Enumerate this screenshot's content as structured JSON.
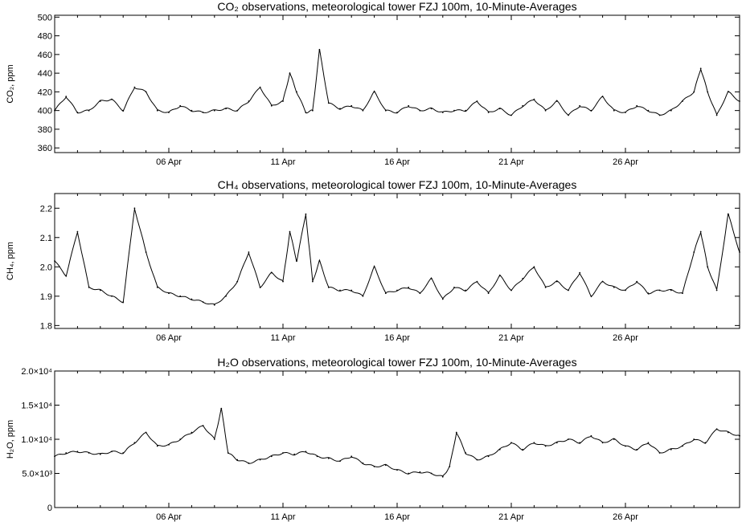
{
  "chart_data": [
    {
      "type": "line",
      "title": "CO₂ observations, meteorological tower FZJ 100m, 10-Minute-Averages",
      "ylabel": "CO₂, ppm",
      "xlabel": "",
      "x_ticks": [
        "06 Apr",
        "11 Apr",
        "16 Apr",
        "21 Apr",
        "26 Apr"
      ],
      "y_ticks": [
        "360",
        "380",
        "400",
        "420",
        "440",
        "460",
        "480",
        "500"
      ],
      "xlim": [
        1,
        31
      ],
      "ylim": [
        355,
        502
      ],
      "series": [
        {
          "color": "#000000",
          "x": [
            1.0,
            1.5,
            2.0,
            2.5,
            3.0,
            3.5,
            4.0,
            4.5,
            5.0,
            5.5,
            6.0,
            6.5,
            7.0,
            7.5,
            8.0,
            8.5,
            9.0,
            9.5,
            10.0,
            10.5,
            11.0,
            11.3,
            11.6,
            12.0,
            12.3,
            12.6,
            13.0,
            13.5,
            14.0,
            14.5,
            15.0,
            15.5,
            16.0,
            16.5,
            17.0,
            17.5,
            18.0,
            18.5,
            19.0,
            19.5,
            20.0,
            20.5,
            21.0,
            21.5,
            22.0,
            22.5,
            23.0,
            23.5,
            24.0,
            24.5,
            25.0,
            25.5,
            26.0,
            26.5,
            27.0,
            27.5,
            28.0,
            28.5,
            29.0,
            29.3,
            29.6,
            30.0,
            30.5,
            31.0
          ],
          "y": [
            400,
            415,
            398,
            400,
            410,
            412,
            400,
            425,
            420,
            400,
            398,
            405,
            400,
            398,
            400,
            402,
            400,
            410,
            425,
            405,
            410,
            440,
            420,
            398,
            400,
            465,
            408,
            402,
            405,
            400,
            420,
            400,
            398,
            405,
            400,
            402,
            398,
            400,
            400,
            410,
            398,
            402,
            395,
            405,
            412,
            400,
            410,
            395,
            405,
            400,
            415,
            400,
            398,
            405,
            400,
            395,
            400,
            410,
            420,
            445,
            420,
            395,
            420,
            410
          ]
        }
      ]
    },
    {
      "type": "line",
      "title": "CH₄ observations, meteorological tower FZJ 100m, 10-Minute-Averages",
      "ylabel": "CH₄, ppm",
      "xlabel": "",
      "x_ticks": [
        "06 Apr",
        "11 Apr",
        "16 Apr",
        "21 Apr",
        "26 Apr"
      ],
      "y_ticks": [
        "1.8",
        "1.9",
        "2.0",
        "2.1",
        "2.2"
      ],
      "xlim": [
        1,
        31
      ],
      "ylim": [
        1.79,
        2.25
      ],
      "series": [
        {
          "color": "#000000",
          "x": [
            1.0,
            1.5,
            2.0,
            2.5,
            3.0,
            3.5,
            4.0,
            4.5,
            5.0,
            5.5,
            6.0,
            6.5,
            7.0,
            7.5,
            8.0,
            8.5,
            9.0,
            9.5,
            10.0,
            10.5,
            11.0,
            11.3,
            11.6,
            12.0,
            12.3,
            12.6,
            13.0,
            13.5,
            14.0,
            14.5,
            15.0,
            15.5,
            16.0,
            16.5,
            17.0,
            17.5,
            18.0,
            18.5,
            19.0,
            19.5,
            20.0,
            20.5,
            21.0,
            21.5,
            22.0,
            22.5,
            23.0,
            23.5,
            24.0,
            24.5,
            25.0,
            25.5,
            26.0,
            26.5,
            27.0,
            27.5,
            28.0,
            28.5,
            29.0,
            29.3,
            29.6,
            30.0,
            30.5,
            31.0
          ],
          "y": [
            2.02,
            1.97,
            2.12,
            1.93,
            1.92,
            1.9,
            1.88,
            2.2,
            2.05,
            1.93,
            1.91,
            1.9,
            1.89,
            1.88,
            1.87,
            1.9,
            1.95,
            2.05,
            1.93,
            1.98,
            1.95,
            2.12,
            2.02,
            2.18,
            1.95,
            2.02,
            1.93,
            1.92,
            1.92,
            1.9,
            2.0,
            1.91,
            1.92,
            1.93,
            1.91,
            1.96,
            1.89,
            1.93,
            1.92,
            1.95,
            1.91,
            1.97,
            1.92,
            1.96,
            2.0,
            1.93,
            1.95,
            1.92,
            1.98,
            1.9,
            1.95,
            1.93,
            1.92,
            1.95,
            1.91,
            1.92,
            1.92,
            1.91,
            2.05,
            2.12,
            2.0,
            1.92,
            2.18,
            2.05
          ]
        }
      ]
    },
    {
      "type": "line",
      "title": "H₂O observations, meteorological tower FZJ 100m, 10-Minute-Averages",
      "ylabel": "H₂O, ppm",
      "xlabel": "",
      "x_ticks": [
        "06 Apr",
        "11 Apr",
        "16 Apr",
        "21 Apr",
        "26 Apr"
      ],
      "y_ticks": [
        "0",
        "5.0×10³",
        "1.0×10⁴",
        "1.5×10⁴",
        "2.0×10⁴"
      ],
      "xlim": [
        1,
        31
      ],
      "ylim": [
        0,
        20000
      ],
      "series": [
        {
          "color": "#000000",
          "x": [
            1.0,
            1.5,
            2.0,
            2.5,
            3.0,
            3.5,
            4.0,
            4.5,
            5.0,
            5.5,
            6.0,
            6.5,
            7.0,
            7.5,
            8.0,
            8.3,
            8.6,
            9.0,
            9.5,
            10.0,
            10.5,
            11.0,
            11.5,
            12.0,
            12.5,
            13.0,
            13.5,
            14.0,
            14.5,
            15.0,
            15.5,
            16.0,
            16.5,
            17.0,
            17.5,
            18.0,
            18.3,
            18.6,
            19.0,
            19.5,
            20.0,
            20.5,
            21.0,
            21.5,
            22.0,
            22.5,
            23.0,
            23.5,
            24.0,
            24.5,
            25.0,
            25.5,
            26.0,
            26.5,
            27.0,
            27.5,
            28.0,
            28.5,
            29.0,
            29.5,
            30.0,
            30.5,
            31.0
          ],
          "y": [
            7500,
            8000,
            8200,
            8000,
            7800,
            8200,
            8000,
            9500,
            11000,
            9000,
            9200,
            10000,
            11000,
            12000,
            10000,
            14500,
            8000,
            7000,
            6500,
            7000,
            7500,
            8000,
            7800,
            8200,
            7500,
            7200,
            6800,
            7500,
            6500,
            6000,
            6200,
            5500,
            5000,
            5200,
            5000,
            4500,
            6000,
            11000,
            8000,
            7000,
            7500,
            8500,
            9500,
            8500,
            9500,
            9000,
            9500,
            10000,
            9500,
            10500,
            9500,
            10000,
            9000,
            8500,
            9500,
            8000,
            8500,
            9000,
            10000,
            9500,
            11500,
            11000,
            10500
          ]
        }
      ]
    }
  ]
}
